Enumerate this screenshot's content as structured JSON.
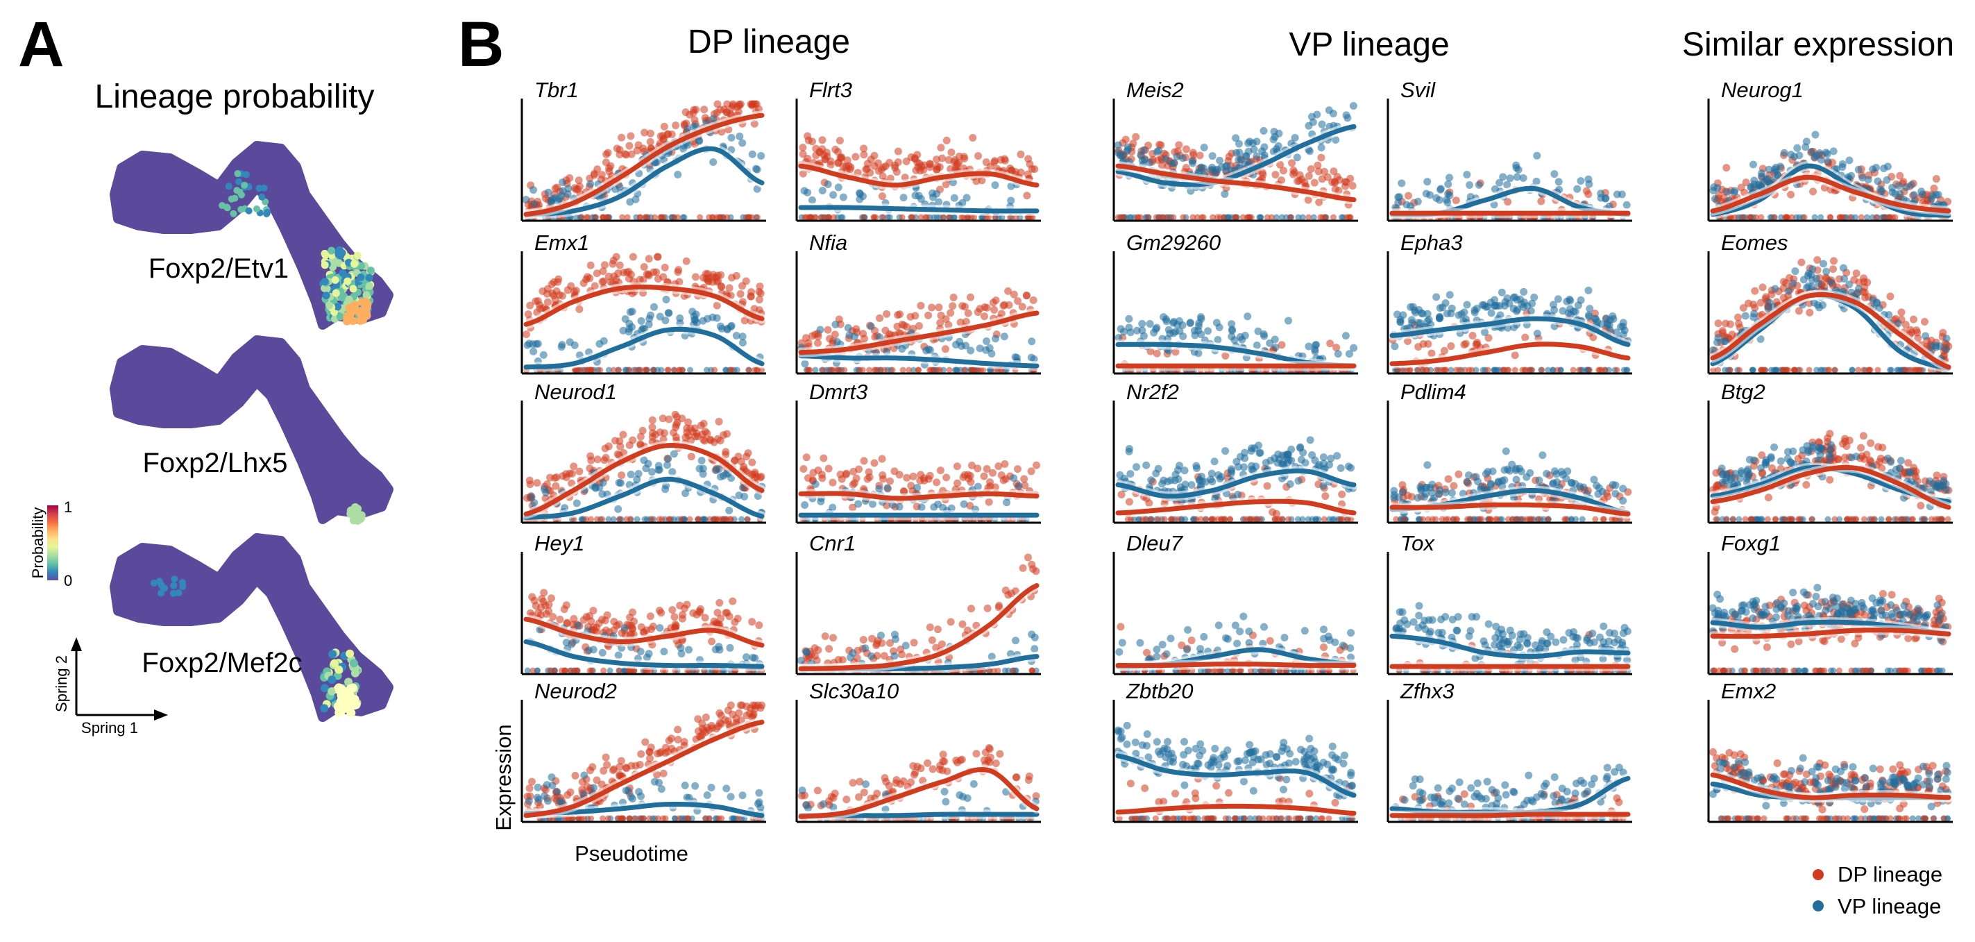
{
  "panels": {
    "a_label": "A",
    "b_label": "B"
  },
  "lineage_panel": {
    "title": "Lineage probability",
    "embeddings": [
      {
        "label": "Foxp2/Etv1",
        "highlight": "etv1"
      },
      {
        "label": "Foxp2/Lhx5",
        "highlight": "lhx5"
      },
      {
        "label": "Foxp2/Mef2c",
        "highlight": "mef2c"
      }
    ],
    "colorbar": {
      "label": "Probability",
      "min_label": "0",
      "max_label": "1",
      "colors": [
        "#5e4fa2",
        "#3288bd",
        "#66c2a5",
        "#abdda4",
        "#e6f598",
        "#fee08b",
        "#fdae61",
        "#f46d43",
        "#d53e4f",
        "#9e0142"
      ]
    },
    "axes": {
      "x_label": "Spring 1",
      "y_label": "Spring 2"
    },
    "base_color": "#5b4a9c"
  },
  "groups": [
    {
      "title": "DP lineage"
    },
    {
      "title": "VP lineage"
    },
    {
      "title": "Similar expression"
    }
  ],
  "axis_labels": {
    "y": "Expression",
    "x": "Pseudotime"
  },
  "legend": [
    {
      "label": "DP lineage",
      "color": "#d13b1e"
    },
    {
      "label": "VP lineage",
      "color": "#1f6e9c"
    }
  ],
  "chart_data": {
    "type": "scatter",
    "description": "Gene expression vs pseudotime with smoothed trend per lineage; x and y normalized 0-1",
    "x_range": [
      0,
      1
    ],
    "y_range": [
      0,
      1
    ],
    "series_names": [
      "DP lineage",
      "VP lineage"
    ],
    "genes": [
      {
        "name": "Tbr1",
        "dp": [
          0.02,
          0.12,
          0.35,
          0.62,
          0.8,
          0.9
        ],
        "vp": [
          0.02,
          0.05,
          0.18,
          0.45,
          0.6,
          0.3
        ],
        "dp_den": 1.0,
        "vp_den": 0.6
      },
      {
        "name": "Emx1",
        "dp": [
          0.4,
          0.6,
          0.72,
          0.72,
          0.65,
          0.45
        ],
        "vp": [
          0.02,
          0.05,
          0.2,
          0.35,
          0.3,
          0.05
        ],
        "dp_den": 1.0,
        "vp_den": 0.45
      },
      {
        "name": "Neurod1",
        "dp": [
          0.04,
          0.25,
          0.5,
          0.65,
          0.55,
          0.25
        ],
        "vp": [
          0.01,
          0.05,
          0.2,
          0.35,
          0.22,
          0.02
        ],
        "dp_den": 1.0,
        "vp_den": 0.5
      },
      {
        "name": "Hey1",
        "dp": [
          0.45,
          0.32,
          0.25,
          0.3,
          0.35,
          0.22
        ],
        "vp": [
          0.25,
          0.12,
          0.06,
          0.04,
          0.04,
          0.03
        ],
        "dp_den": 0.9,
        "vp_den": 0.35
      },
      {
        "name": "Neurod2",
        "dp": [
          0.02,
          0.1,
          0.3,
          0.5,
          0.7,
          0.85
        ],
        "vp": [
          0.04,
          0.05,
          0.08,
          0.12,
          0.1,
          0.02
        ],
        "dp_den": 1.0,
        "vp_den": 0.35
      },
      {
        "name": "Flrt3",
        "dp": [
          0.45,
          0.35,
          0.28,
          0.35,
          0.38,
          0.28
        ],
        "vp": [
          0.08,
          0.08,
          0.07,
          0.06,
          0.05,
          0.05
        ],
        "dp_den": 1.0,
        "vp_den": 0.3
      },
      {
        "name": "Nfia",
        "dp": [
          0.15,
          0.18,
          0.25,
          0.32,
          0.4,
          0.5
        ],
        "vp": [
          0.12,
          0.1,
          0.1,
          0.08,
          0.05,
          0.03
        ],
        "dp_den": 0.8,
        "vp_den": 0.4
      },
      {
        "name": "Dmrt3",
        "dp": [
          0.22,
          0.22,
          0.18,
          0.2,
          0.22,
          0.2
        ],
        "vp": [
          0.03,
          0.03,
          0.03,
          0.03,
          0.03,
          0.03
        ],
        "dp_den": 0.7,
        "vp_den": 0.3
      },
      {
        "name": "Cnr1",
        "dp": [
          0.01,
          0.02,
          0.05,
          0.15,
          0.4,
          0.75
        ],
        "vp": [
          0.01,
          0.01,
          0.01,
          0.02,
          0.05,
          0.12
        ],
        "dp_den": 0.5,
        "vp_den": 0.2
      },
      {
        "name": "Slc30a10",
        "dp": [
          0.01,
          0.05,
          0.18,
          0.32,
          0.42,
          0.08
        ],
        "vp": [
          0.02,
          0.02,
          0.02,
          0.03,
          0.03,
          0.03
        ],
        "dp_den": 0.5,
        "vp_den": 0.15
      },
      {
        "name": "Meis2",
        "dp": [
          0.45,
          0.38,
          0.32,
          0.28,
          0.22,
          0.15
        ],
        "vp": [
          0.4,
          0.3,
          0.3,
          0.45,
          0.65,
          0.8
        ],
        "dp_den": 0.9,
        "vp_den": 0.9
      },
      {
        "name": "Gm29260",
        "dp": [
          0.03,
          0.03,
          0.03,
          0.03,
          0.03,
          0.03
        ],
        "vp": [
          0.22,
          0.22,
          0.2,
          0.14,
          0.06,
          0.03
        ],
        "dp_den": 0.1,
        "vp_den": 0.6
      },
      {
        "name": "Nr2f2",
        "dp": [
          0.05,
          0.08,
          0.12,
          0.15,
          0.14,
          0.05
        ],
        "vp": [
          0.3,
          0.2,
          0.25,
          0.38,
          0.42,
          0.3
        ],
        "dp_den": 0.3,
        "vp_den": 0.9
      },
      {
        "name": "Dleu7",
        "dp": [
          0.04,
          0.04,
          0.05,
          0.05,
          0.04,
          0.04
        ],
        "vp": [
          0.03,
          0.05,
          0.12,
          0.18,
          0.1,
          0.05
        ],
        "dp_den": 0.15,
        "vp_den": 0.35
      },
      {
        "name": "Zbtb20",
        "dp": [
          0.05,
          0.08,
          0.1,
          0.1,
          0.08,
          0.04
        ],
        "vp": [
          0.55,
          0.42,
          0.38,
          0.4,
          0.4,
          0.2
        ],
        "dp_den": 0.15,
        "vp_den": 1.0
      },
      {
        "name": "Svil",
        "dp": [
          0.03,
          0.03,
          0.03,
          0.03,
          0.03,
          0.03
        ],
        "vp": [
          0.02,
          0.03,
          0.15,
          0.25,
          0.08,
          0.02
        ],
        "dp_den": 0.15,
        "vp_den": 0.45
      },
      {
        "name": "Epha3",
        "dp": [
          0.05,
          0.08,
          0.15,
          0.22,
          0.2,
          0.1
        ],
        "vp": [
          0.3,
          0.35,
          0.4,
          0.45,
          0.4,
          0.22
        ],
        "dp_den": 0.3,
        "vp_den": 1.0
      },
      {
        "name": "Pdlim4",
        "dp": [
          0.1,
          0.1,
          0.12,
          0.12,
          0.1,
          0.04
        ],
        "vp": [
          0.08,
          0.12,
          0.2,
          0.25,
          0.18,
          0.05
        ],
        "dp_den": 0.5,
        "vp_den": 0.7
      },
      {
        "name": "Tox",
        "dp": [
          0.03,
          0.03,
          0.03,
          0.03,
          0.03,
          0.03
        ],
        "vp": [
          0.3,
          0.25,
          0.15,
          0.12,
          0.16,
          0.15
        ],
        "dp_den": 0.1,
        "vp_den": 0.9
      },
      {
        "name": "Zfhx3",
        "dp": [
          0.02,
          0.02,
          0.02,
          0.03,
          0.03,
          0.03
        ],
        "vp": [
          0.08,
          0.05,
          0.05,
          0.05,
          0.12,
          0.35
        ],
        "dp_den": 0.15,
        "vp_den": 0.6
      },
      {
        "name": "Neurog1",
        "dp": [
          0.05,
          0.2,
          0.35,
          0.22,
          0.1,
          0.05
        ],
        "vp": [
          0.02,
          0.15,
          0.45,
          0.25,
          0.05,
          0.01
        ],
        "dp_den": 0.8,
        "vp_den": 0.8
      },
      {
        "name": "Eomes",
        "dp": [
          0.1,
          0.4,
          0.65,
          0.6,
          0.3,
          0.02
        ],
        "vp": [
          0.05,
          0.35,
          0.65,
          0.55,
          0.15,
          0.01
        ],
        "dp_den": 1.0,
        "vp_den": 0.7
      },
      {
        "name": "Btg2",
        "dp": [
          0.15,
          0.25,
          0.4,
          0.45,
          0.3,
          0.1
        ],
        "vp": [
          0.2,
          0.3,
          0.45,
          0.4,
          0.25,
          0.15
        ],
        "dp_den": 1.0,
        "vp_den": 0.8
      },
      {
        "name": "Foxg1",
        "dp": [
          0.3,
          0.3,
          0.32,
          0.35,
          0.35,
          0.32
        ],
        "vp": [
          0.42,
          0.38,
          0.42,
          0.42,
          0.38,
          0.32
        ],
        "dp_den": 1.0,
        "vp_den": 1.0
      },
      {
        "name": "Emx2",
        "dp": [
          0.38,
          0.25,
          0.18,
          0.2,
          0.2,
          0.18
        ],
        "vp": [
          0.3,
          0.2,
          0.18,
          0.18,
          0.18,
          0.18
        ],
        "dp_den": 0.9,
        "vp_den": 0.8
      }
    ]
  }
}
